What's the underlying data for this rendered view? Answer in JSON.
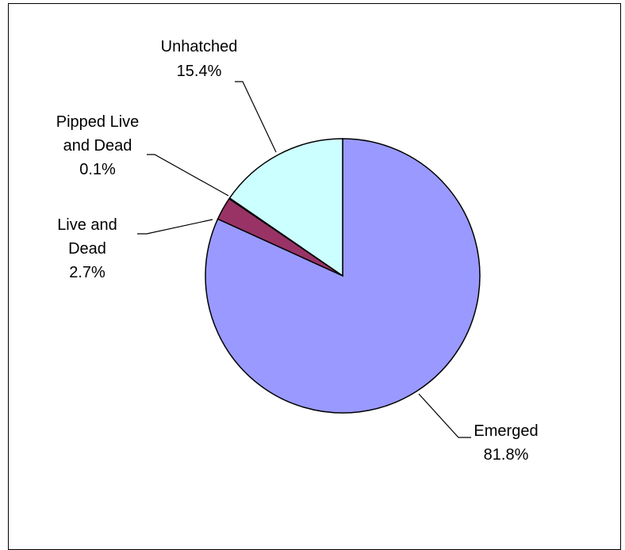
{
  "chart_data": {
    "type": "pie",
    "title": "",
    "start": "12 o'clock, clockwise",
    "legend": "none (data labels beside slices)",
    "slices": [
      {
        "name": "Emerged",
        "label_lines": [
          "Emerged",
          "81.8%"
        ],
        "value": 81.8,
        "color": "#9999ff"
      },
      {
        "name": "Live and Dead",
        "label_lines": [
          "Live and",
          "Dead",
          "2.7%"
        ],
        "value": 2.7,
        "color": "#993366"
      },
      {
        "name": "Pipped Live and Dead",
        "label_lines": [
          "Pipped Live",
          "and Dead",
          "0.1%"
        ],
        "value": 0.1,
        "color": "#993366"
      },
      {
        "name": "Unhatched",
        "label_lines": [
          "Unhatched",
          "15.4%"
        ],
        "value": 15.4,
        "color": "#ccffff"
      }
    ]
  }
}
